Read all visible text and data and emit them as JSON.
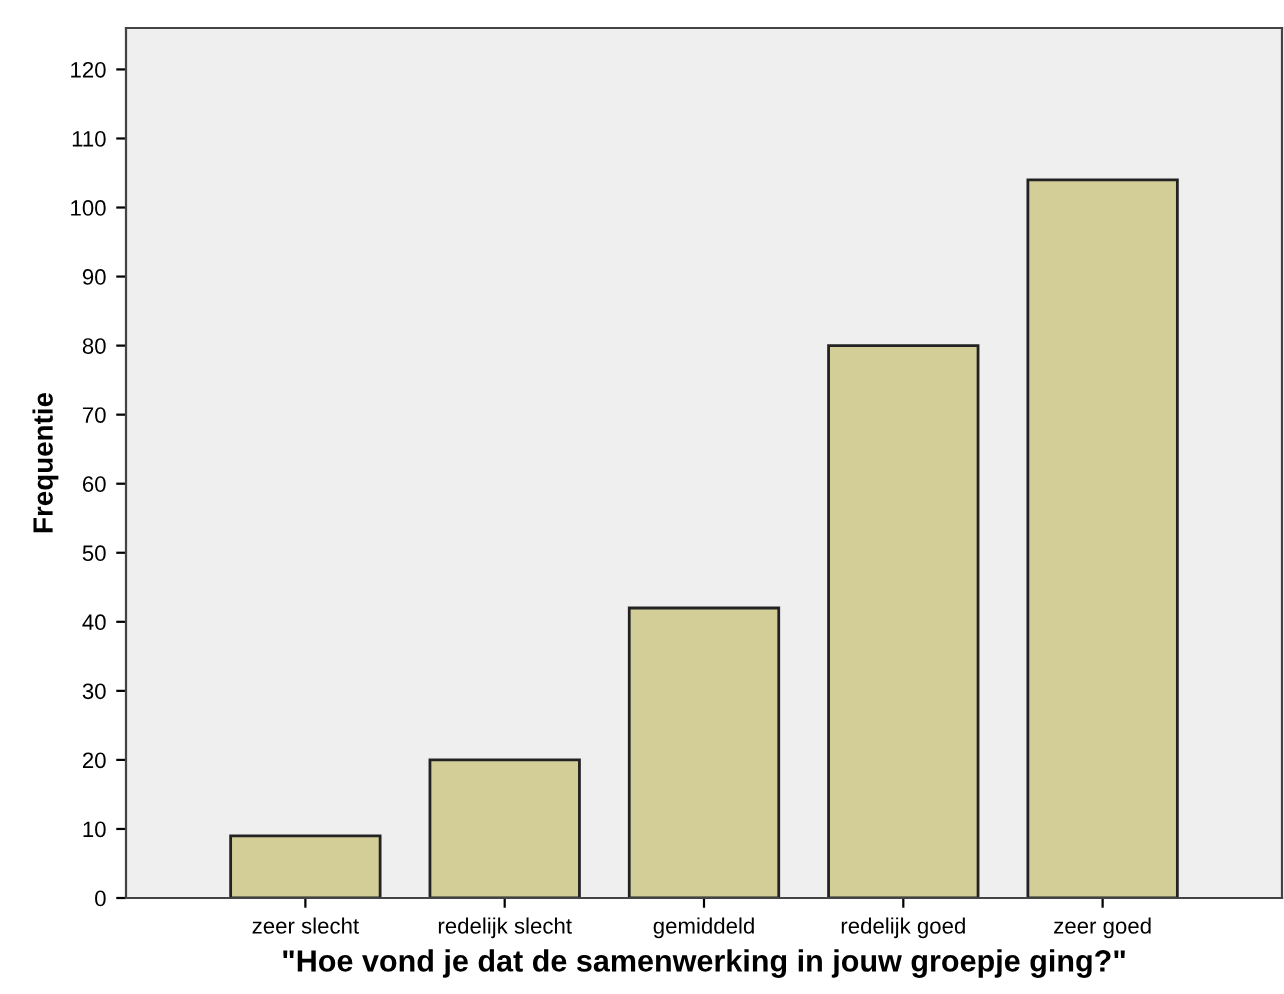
{
  "chart_data": {
    "type": "bar",
    "xlabel": "\"Hoe vond je dat de samenwerking in jouw groepje ging?\"",
    "ylabel": "Frequentie",
    "categories": [
      "zeer slecht",
      "redelijk slecht",
      "gemiddeld",
      "redelijk goed",
      "zeer goed"
    ],
    "values": [
      9,
      20,
      42,
      80,
      104
    ],
    "color": "#d3ce97",
    "ylim": [
      0,
      126
    ],
    "yticks": [
      0,
      10,
      20,
      30,
      40,
      50,
      60,
      70,
      80,
      90,
      100,
      110,
      120
    ],
    "grid": false
  }
}
